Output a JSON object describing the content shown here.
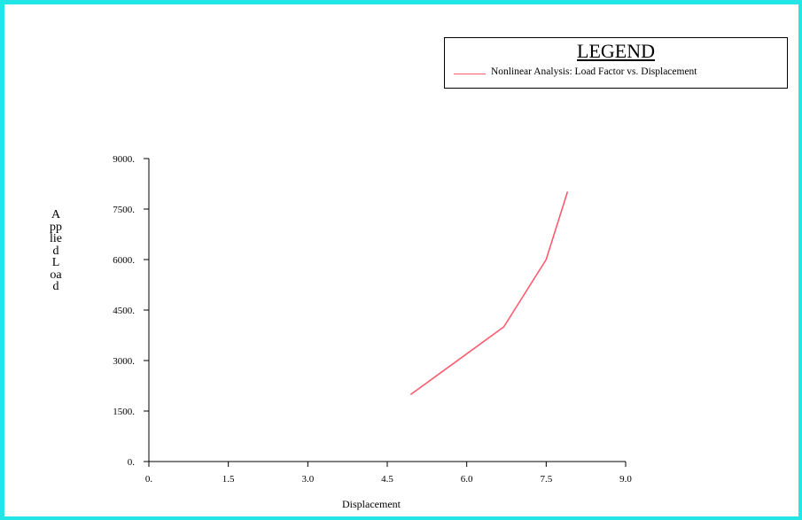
{
  "chart_data": {
    "type": "line",
    "title": "",
    "xlabel": "Displacement",
    "ylabel": "Applied Load",
    "xlim": [
      0,
      9
    ],
    "ylim": [
      0,
      9000
    ],
    "x_ticks": [
      "0.",
      "1.5",
      "3.0",
      "4.5",
      "6.0",
      "7.5",
      "9.0"
    ],
    "y_ticks": [
      "0.",
      "1500.",
      "3000.",
      "4500.",
      "6000.",
      "7500.",
      "9000."
    ],
    "grid": false,
    "legend_position": "top-right",
    "legend_title": "LEGEND",
    "series": [
      {
        "name": "Nonlinear Analysis: Load Factor vs. Displacement",
        "color": "#ff5a6e",
        "x": [
          4.95,
          6.7,
          7.5,
          7.9
        ],
        "y": [
          2000,
          4000,
          6000,
          8000
        ]
      }
    ]
  }
}
